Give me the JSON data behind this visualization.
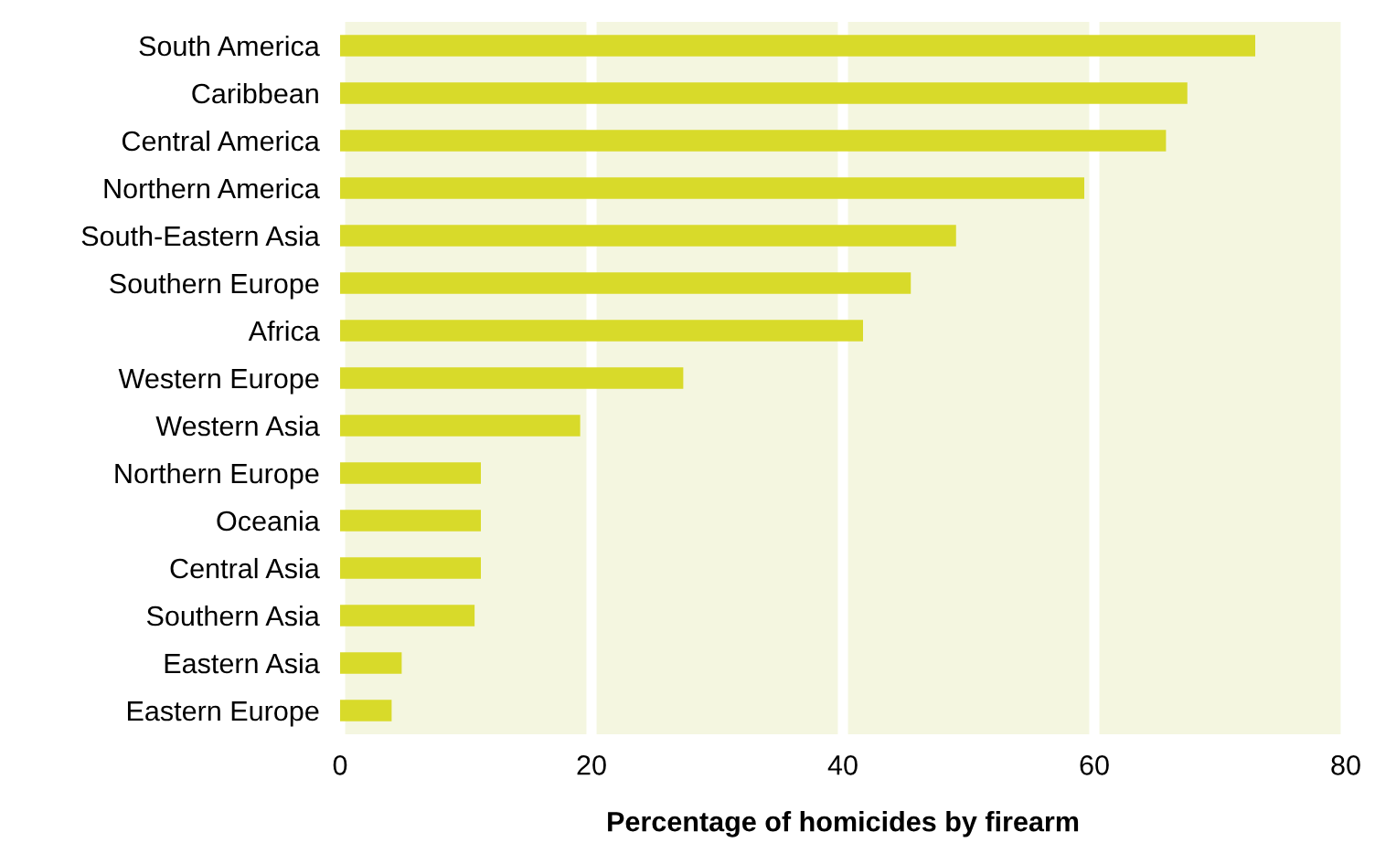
{
  "chart_data": {
    "type": "bar",
    "orientation": "horizontal",
    "xlabel": "Percentage of homicides by firearm",
    "categories": [
      "South America",
      "Caribbean",
      "Central America",
      "Northern America",
      "South-Eastern Asia",
      "Southern Europe",
      "Africa",
      "Western Europe",
      "Western Asia",
      "Northern Europe",
      "Oceania",
      "Central Asia",
      "Southern Asia",
      "Eastern Asia",
      "Eastern Europe"
    ],
    "values": [
      72.8,
      67.4,
      65.7,
      59.2,
      49.0,
      45.4,
      41.6,
      27.3,
      19.1,
      11.2,
      11.2,
      11.2,
      10.7,
      4.9,
      4.1
    ],
    "color": "#d8da2a",
    "xlim": [
      0,
      80
    ],
    "xticks": [
      0,
      20,
      40,
      60,
      80
    ],
    "grid": "x",
    "legend": false
  }
}
